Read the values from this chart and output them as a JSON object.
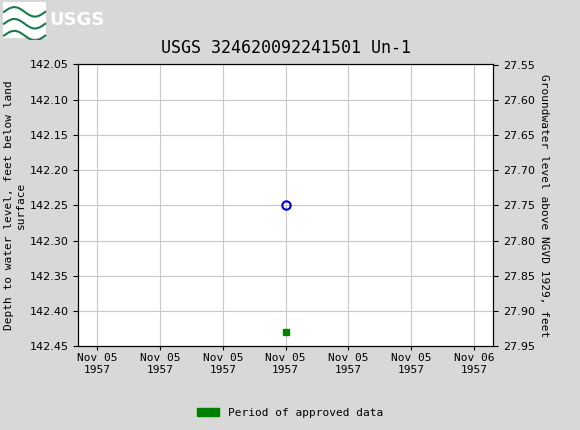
{
  "title": "USGS 324620092241501 Un-1",
  "header_bg_color": "#1a7a4a",
  "plot_bg_color": "#ffffff",
  "outer_bg_color": "#d8d8d8",
  "left_ylabel": "Depth to water level, feet below land\nsurface",
  "right_ylabel": "Groundwater level above NGVD 1929, feet",
  "ylim_left": [
    142.05,
    142.45
  ],
  "ylim_right": [
    27.55,
    27.95
  ],
  "yticks_left": [
    142.05,
    142.1,
    142.15,
    142.2,
    142.25,
    142.3,
    142.35,
    142.4,
    142.45
  ],
  "yticks_right": [
    27.55,
    27.6,
    27.65,
    27.7,
    27.75,
    27.8,
    27.85,
    27.9,
    27.95
  ],
  "x_data": [
    0.5
  ],
  "y_open_circle": [
    142.25
  ],
  "y_green_square": [
    142.43
  ],
  "open_circle_color": "#0000cc",
  "green_square_color": "#008000",
  "xtick_labels": [
    "Nov 05\n1957",
    "Nov 05\n1957",
    "Nov 05\n1957",
    "Nov 05\n1957",
    "Nov 05\n1957",
    "Nov 05\n1957",
    "Nov 06\n1957"
  ],
  "xtick_positions": [
    0.0,
    0.1667,
    0.3333,
    0.5,
    0.6667,
    0.8333,
    1.0
  ],
  "legend_label": "Period of approved data",
  "legend_color": "#008000",
  "grid_color": "#c8c8c8",
  "font_family": "monospace",
  "title_fontsize": 12,
  "axis_fontsize": 8,
  "tick_fontsize": 8
}
